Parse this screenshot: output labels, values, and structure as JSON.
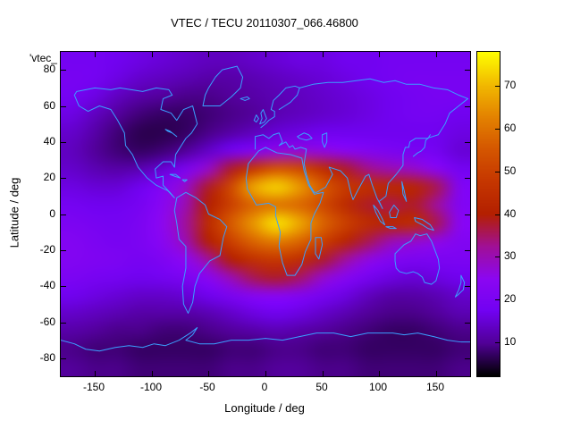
{
  "title": "VTEC / TECU 20110307_066.46800",
  "stray_label": "'vtec_",
  "axes": {
    "xlabel": "Longitude / deg",
    "ylabel": "Latitude / deg",
    "x_ticks": [
      -150,
      -100,
      -50,
      0,
      50,
      100,
      150
    ],
    "y_ticks": [
      -80,
      -60,
      -40,
      -20,
      0,
      20,
      40,
      60,
      80
    ],
    "x_range": [
      -180,
      180
    ],
    "y_range": [
      -90,
      90
    ]
  },
  "colorbar": {
    "min": 2,
    "max": 78,
    "ticks": [
      10,
      20,
      30,
      40,
      50,
      60,
      70
    ]
  },
  "colors": {
    "coastline": "#3aa0ff",
    "figure_background": "#ffffff",
    "text": "#000000",
    "border": "#000000"
  },
  "chart_data": {
    "type": "heatmap",
    "title": "VTEC / TECU 20110307_066.46800",
    "xlabel": "Longitude / deg",
    "ylabel": "Latitude / deg",
    "x_range": [
      -180,
      180
    ],
    "y_range": [
      -90,
      90
    ],
    "value_range": [
      2,
      78
    ],
    "colorbar_ticks": [
      10,
      20,
      30,
      40,
      50,
      60,
      70
    ],
    "legend_position": "right-colorbar",
    "grid": false,
    "lon_centers": [
      -170,
      -150,
      -130,
      -110,
      -90,
      -70,
      -50,
      -30,
      -10,
      10,
      30,
      50,
      70,
      90,
      110,
      130,
      150,
      170
    ],
    "lat_centers": [
      85,
      75,
      65,
      55,
      45,
      35,
      25,
      15,
      5,
      -5,
      -15,
      -25,
      -35,
      -45,
      -55,
      -65,
      -75,
      -85
    ],
    "values": [
      [
        18,
        18,
        17,
        16,
        15,
        14,
        13,
        13,
        14,
        15,
        16,
        16,
        17,
        17,
        18,
        18,
        18,
        18
      ],
      [
        19,
        18,
        16,
        14,
        13,
        12,
        11,
        11,
        12,
        13,
        14,
        15,
        16,
        17,
        18,
        19,
        19,
        19
      ],
      [
        18,
        16,
        13,
        11,
        10,
        9,
        9,
        10,
        11,
        12,
        13,
        14,
        15,
        16,
        17,
        18,
        19,
        19
      ],
      [
        16,
        13,
        10,
        8,
        7,
        7,
        8,
        9,
        10,
        12,
        13,
        14,
        15,
        16,
        17,
        18,
        18,
        17
      ],
      [
        14,
        11,
        8,
        6,
        6,
        7,
        9,
        11,
        13,
        15,
        16,
        17,
        17,
        17,
        17,
        17,
        17,
        16
      ],
      [
        13,
        10,
        8,
        7,
        8,
        10,
        14,
        18,
        22,
        26,
        27,
        26,
        24,
        22,
        20,
        19,
        18,
        15
      ],
      [
        14,
        12,
        11,
        12,
        15,
        20,
        28,
        38,
        48,
        55,
        52,
        45,
        38,
        33,
        30,
        28,
        24,
        18
      ],
      [
        16,
        15,
        15,
        17,
        22,
        28,
        38,
        52,
        68,
        73,
        66,
        56,
        48,
        45,
        43,
        42,
        36,
        22
      ],
      [
        18,
        17,
        17,
        19,
        24,
        30,
        40,
        50,
        58,
        60,
        58,
        52,
        44,
        38,
        36,
        38,
        32,
        22
      ],
      [
        20,
        19,
        18,
        20,
        25,
        32,
        44,
        56,
        66,
        75,
        68,
        58,
        50,
        44,
        42,
        44,
        36,
        24
      ],
      [
        22,
        20,
        19,
        20,
        24,
        30,
        40,
        50,
        58,
        62,
        58,
        50,
        42,
        36,
        30,
        28,
        26,
        22
      ],
      [
        22,
        21,
        20,
        19,
        21,
        25,
        32,
        40,
        46,
        48,
        45,
        38,
        32,
        26,
        22,
        20,
        20,
        20
      ],
      [
        20,
        19,
        18,
        17,
        18,
        20,
        24,
        30,
        36,
        38,
        35,
        28,
        23,
        19,
        16,
        15,
        16,
        17
      ],
      [
        17,
        16,
        15,
        14,
        14,
        15,
        17,
        20,
        23,
        24,
        22,
        19,
        16,
        13,
        11,
        11,
        12,
        14
      ],
      [
        14,
        13,
        12,
        11,
        11,
        11,
        12,
        14,
        16,
        17,
        16,
        14,
        12,
        10,
        9,
        9,
        10,
        12
      ],
      [
        11,
        10,
        9,
        9,
        8,
        8,
        9,
        10,
        11,
        12,
        11,
        10,
        9,
        8,
        7,
        7,
        8,
        9
      ],
      [
        9,
        8,
        8,
        7,
        7,
        7,
        7,
        8,
        8,
        9,
        9,
        8,
        8,
        7,
        7,
        7,
        7,
        8
      ],
      [
        10,
        9,
        9,
        8,
        8,
        8,
        8,
        9,
        9,
        10,
        10,
        9,
        9,
        8,
        8,
        8,
        8,
        9
      ]
    ],
    "palette_stops": [
      [
        0.0,
        0,
        0,
        0
      ],
      [
        0.1,
        81,
        0,
        150
      ],
      [
        0.2,
        114,
        2,
        242
      ],
      [
        0.3,
        140,
        7,
        242
      ],
      [
        0.4,
        161,
        16,
        150
      ],
      [
        0.5,
        180,
        32,
        0
      ],
      [
        0.6,
        198,
        55,
        0
      ],
      [
        0.7,
        213,
        87,
        0
      ],
      [
        0.8,
        228,
        131,
        0
      ],
      [
        0.9,
        242,
        186,
        0
      ],
      [
        1.0,
        255,
        255,
        0
      ]
    ]
  }
}
